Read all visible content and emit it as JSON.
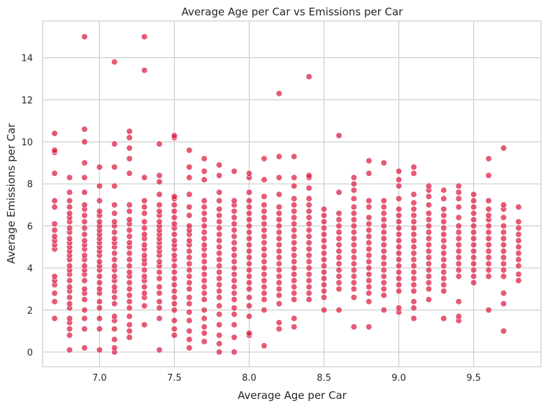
{
  "chart_data": {
    "type": "scatter",
    "title": "Average Age per Car vs Emissions per Car",
    "xlabel": "Average Age per Car",
    "ylabel": "Average Emissions per Car",
    "xlim": [
      6.62,
      9.95
    ],
    "ylim": [
      -0.7,
      15.75
    ],
    "x_ticks": [
      7.0,
      7.5,
      8.0,
      8.5,
      9.0,
      9.5
    ],
    "x_tick_labels": [
      "7.0",
      "7.5",
      "8.0",
      "8.5",
      "9.0",
      "9.5"
    ],
    "y_ticks": [
      0,
      2,
      4,
      6,
      8,
      10,
      12,
      14
    ],
    "y_tick_labels": [
      "0",
      "2",
      "4",
      "6",
      "8",
      "10",
      "12",
      "14"
    ],
    "grid": true,
    "marker_color": "#dc143c",
    "marker_alpha": 0.7,
    "x_range": [
      6.7,
      9.8
    ],
    "columns": [
      {
        "x": 6.7,
        "y": [
          1.6,
          2.4,
          2.8,
          3.2,
          3.4,
          3.6,
          4.9,
          5.1,
          5.3,
          5.5,
          5.8,
          6.1,
          6.9,
          7.2,
          8.5,
          9.5,
          9.6,
          10.4
        ]
      },
      {
        "x": 6.8,
        "y": [
          0.1,
          0.8,
          1.1,
          1.4,
          1.6,
          2.1,
          2.3,
          2.6,
          2.9,
          3.1,
          3.4,
          3.7,
          3.9,
          4.1,
          4.4,
          4.6,
          4.8,
          5.0,
          5.2,
          5.4,
          5.7,
          5.9,
          6.2,
          6.4,
          6.6,
          6.9,
          7.2,
          7.6,
          8.3
        ]
      },
      {
        "x": 6.9,
        "y": [
          0.2,
          1.1,
          1.6,
          2.0,
          2.5,
          2.8,
          3.0,
          3.4,
          3.7,
          3.9,
          4.1,
          4.4,
          4.6,
          4.9,
          5.1,
          5.3,
          5.6,
          5.9,
          6.2,
          6.5,
          6.8,
          7.0,
          7.6,
          8.3,
          9.0,
          10.0,
          10.6,
          15.0
        ]
      },
      {
        "x": 7.0,
        "y": [
          0.1,
          1.1,
          1.6,
          2.1,
          2.4,
          2.8,
          3.0,
          3.3,
          3.6,
          3.9,
          4.1,
          4.3,
          4.6,
          4.8,
          5.0,
          5.2,
          5.4,
          5.6,
          5.8,
          6.0,
          6.2,
          6.5,
          6.7,
          7.2,
          7.9,
          8.8
        ]
      },
      {
        "x": 7.1,
        "y": [
          0.0,
          0.2,
          0.6,
          1.1,
          1.5,
          1.7,
          2.3,
          2.6,
          2.9,
          3.1,
          3.4,
          3.6,
          3.9,
          4.1,
          4.4,
          4.7,
          5.0,
          5.2,
          5.4,
          5.7,
          6.0,
          6.2,
          6.6,
          7.0,
          7.9,
          8.8,
          9.9,
          13.8
        ]
      },
      {
        "x": 7.2,
        "y": [
          0.7,
          1.0,
          1.3,
          1.7,
          2.1,
          2.4,
          2.7,
          3.0,
          3.3,
          3.6,
          3.8,
          4.1,
          4.4,
          4.7,
          5.0,
          5.2,
          5.5,
          5.8,
          6.1,
          6.3,
          6.7,
          7.0,
          8.5,
          9.2,
          9.7,
          10.2,
          10.5
        ]
      },
      {
        "x": 7.3,
        "y": [
          1.3,
          2.2,
          2.6,
          2.8,
          3.1,
          3.4,
          3.6,
          3.9,
          4.2,
          4.4,
          4.6,
          4.9,
          5.1,
          5.4,
          5.6,
          5.9,
          6.2,
          6.6,
          6.9,
          7.2,
          8.3,
          13.4,
          15.0
        ]
      },
      {
        "x": 7.4,
        "y": [
          0.1,
          1.6,
          2.1,
          2.4,
          2.8,
          3.1,
          3.5,
          3.8,
          4.1,
          4.3,
          4.6,
          4.8,
          5.0,
          5.2,
          5.4,
          5.6,
          5.8,
          6.0,
          6.2,
          6.5,
          6.7,
          7.0,
          7.5,
          8.1,
          8.4,
          9.9
        ]
      },
      {
        "x": 7.5,
        "y": [
          0.8,
          1.1,
          1.5,
          2.0,
          2.3,
          2.6,
          2.9,
          3.2,
          3.5,
          3.8,
          4.1,
          4.4,
          4.6,
          4.9,
          5.1,
          5.3,
          5.6,
          5.9,
          6.1,
          6.4,
          6.7,
          7.0,
          7.3,
          7.4,
          10.2,
          10.3
        ]
      },
      {
        "x": 7.6,
        "y": [
          0.2,
          0.6,
          1.0,
          1.5,
          1.9,
          2.3,
          2.6,
          3.0,
          3.3,
          3.6,
          3.9,
          4.2,
          4.5,
          4.8,
          5.1,
          5.3,
          5.6,
          5.8,
          6.0,
          6.5,
          6.9,
          7.5,
          8.3,
          8.8,
          9.6
        ]
      },
      {
        "x": 7.7,
        "y": [
          0.5,
          0.9,
          1.2,
          1.6,
          2.0,
          2.5,
          2.8,
          3.1,
          3.4,
          3.7,
          4.0,
          4.3,
          4.6,
          4.9,
          5.1,
          5.4,
          5.7,
          6.0,
          6.3,
          6.6,
          6.9,
          7.2,
          8.2,
          8.6,
          9.2
        ]
      },
      {
        "x": 7.8,
        "y": [
          0.0,
          0.4,
          0.8,
          1.3,
          1.8,
          2.2,
          2.6,
          2.9,
          3.2,
          3.5,
          3.8,
          4.1,
          4.4,
          4.7,
          5.0,
          5.3,
          5.6,
          5.9,
          6.2,
          6.5,
          6.8,
          7.2,
          7.6,
          8.4,
          8.9
        ]
      },
      {
        "x": 7.9,
        "y": [
          0.0,
          0.7,
          1.3,
          1.8,
          2.1,
          2.5,
          2.8,
          3.1,
          3.4,
          3.7,
          4.0,
          4.3,
          4.6,
          4.9,
          5.2,
          5.5,
          5.8,
          6.1,
          6.4,
          6.7,
          7.0,
          7.2,
          8.6
        ]
      },
      {
        "x": 8.0,
        "y": [
          0.8,
          0.9,
          1.7,
          2.2,
          2.6,
          3.0,
          3.3,
          3.6,
          3.9,
          4.2,
          4.5,
          4.8,
          5.1,
          5.4,
          5.7,
          6.0,
          6.3,
          6.6,
          6.9,
          7.2,
          7.6,
          8.3,
          8.5
        ]
      },
      {
        "x": 8.1,
        "y": [
          0.3,
          2.0,
          2.5,
          2.8,
          3.1,
          3.4,
          3.7,
          4.0,
          4.3,
          4.6,
          4.9,
          5.2,
          5.5,
          5.8,
          6.1,
          6.4,
          6.7,
          7.0,
          7.4,
          8.2,
          9.2
        ]
      },
      {
        "x": 8.2,
        "y": [
          1.1,
          1.4,
          2.3,
          2.7,
          3.0,
          3.3,
          3.6,
          3.9,
          4.2,
          4.5,
          4.8,
          5.1,
          5.4,
          5.7,
          6.0,
          6.3,
          6.6,
          6.9,
          7.5,
          8.3,
          9.3,
          12.3
        ]
      },
      {
        "x": 8.3,
        "y": [
          1.2,
          1.6,
          2.5,
          2.8,
          3.1,
          3.4,
          3.7,
          4.0,
          4.3,
          4.6,
          4.9,
          5.2,
          5.5,
          5.8,
          6.1,
          6.4,
          6.7,
          7.0,
          7.3,
          7.9,
          8.3,
          9.3
        ]
      },
      {
        "x": 8.4,
        "y": [
          2.5,
          2.8,
          3.1,
          3.4,
          3.7,
          4.0,
          4.3,
          4.6,
          4.9,
          5.2,
          5.5,
          5.8,
          6.1,
          6.4,
          6.7,
          7.0,
          7.3,
          7.8,
          8.3,
          8.4,
          13.1
        ]
      },
      {
        "x": 8.5,
        "y": [
          2.0,
          2.6,
          2.9,
          3.2,
          3.5,
          3.8,
          4.1,
          4.4,
          4.7,
          5.0,
          5.3,
          5.6,
          5.9,
          6.2,
          6.5,
          6.8
        ]
      },
      {
        "x": 8.6,
        "y": [
          2.0,
          3.0,
          3.3,
          3.6,
          3.9,
          4.2,
          4.5,
          4.8,
          5.1,
          5.4,
          5.7,
          6.0,
          6.3,
          6.6,
          7.6,
          10.3
        ]
      },
      {
        "x": 8.7,
        "y": [
          1.2,
          2.6,
          3.0,
          3.3,
          3.6,
          3.9,
          4.2,
          4.5,
          4.8,
          5.1,
          5.4,
          5.7,
          6.0,
          6.3,
          6.6,
          6.9,
          7.3,
          7.7,
          8.0,
          8.3
        ]
      },
      {
        "x": 8.8,
        "y": [
          1.2,
          2.4,
          2.8,
          3.1,
          3.4,
          3.7,
          4.0,
          4.3,
          4.6,
          4.9,
          5.2,
          5.5,
          5.8,
          6.1,
          6.4,
          6.9,
          7.2,
          8.5,
          9.1
        ]
      },
      {
        "x": 8.9,
        "y": [
          2.0,
          2.7,
          3.0,
          3.3,
          3.6,
          3.9,
          4.2,
          4.5,
          4.8,
          5.1,
          5.4,
          5.7,
          6.0,
          6.3,
          6.6,
          6.9,
          7.2,
          9.0
        ]
      },
      {
        "x": 9.0,
        "y": [
          1.9,
          2.1,
          2.9,
          3.2,
          3.5,
          3.8,
          4.1,
          4.4,
          4.7,
          5.0,
          5.3,
          5.6,
          5.9,
          6.2,
          6.5,
          6.8,
          7.3,
          7.9,
          8.2,
          8.6
        ]
      },
      {
        "x": 9.1,
        "y": [
          1.6,
          2.1,
          2.4,
          2.9,
          3.2,
          3.5,
          3.8,
          4.1,
          4.4,
          4.7,
          5.0,
          5.3,
          5.6,
          5.9,
          6.2,
          6.5,
          6.8,
          7.1,
          7.5,
          8.5,
          8.8
        ]
      },
      {
        "x": 9.2,
        "y": [
          2.5,
          3.0,
          3.3,
          3.6,
          3.9,
          4.2,
          4.5,
          4.8,
          5.1,
          5.4,
          5.7,
          6.0,
          6.3,
          6.6,
          7.0,
          7.4,
          7.7,
          7.9
        ]
      },
      {
        "x": 9.3,
        "y": [
          1.6,
          2.9,
          3.2,
          3.5,
          3.8,
          4.1,
          4.4,
          4.7,
          5.0,
          5.3,
          5.6,
          5.9,
          6.2,
          6.5,
          6.8,
          7.3,
          7.7
        ]
      },
      {
        "x": 9.4,
        "y": [
          1.5,
          1.7,
          2.4,
          3.6,
          3.9,
          4.2,
          4.5,
          4.8,
          5.1,
          5.4,
          5.7,
          6.0,
          6.4,
          6.9,
          7.3,
          7.6,
          7.9
        ]
      },
      {
        "x": 9.5,
        "y": [
          3.3,
          3.6,
          3.9,
          4.2,
          4.5,
          4.8,
          5.1,
          5.4,
          5.7,
          6.0,
          6.3,
          6.6,
          6.9,
          7.2,
          7.5
        ]
      },
      {
        "x": 9.6,
        "y": [
          2.0,
          3.6,
          3.9,
          4.2,
          4.5,
          4.8,
          5.1,
          5.4,
          5.7,
          6.0,
          6.3,
          6.5,
          6.8,
          7.2,
          8.4,
          9.2
        ]
      },
      {
        "x": 9.7,
        "y": [
          1.0,
          2.3,
          2.8,
          3.6,
          3.9,
          4.2,
          4.5,
          4.8,
          5.1,
          5.4,
          5.7,
          6.0,
          6.4,
          6.8,
          7.0,
          9.7
        ]
      },
      {
        "x": 9.8,
        "y": [
          3.4,
          3.7,
          4.1,
          4.4,
          4.7,
          5.0,
          5.3,
          5.6,
          5.9,
          6.2,
          6.9
        ]
      }
    ]
  }
}
